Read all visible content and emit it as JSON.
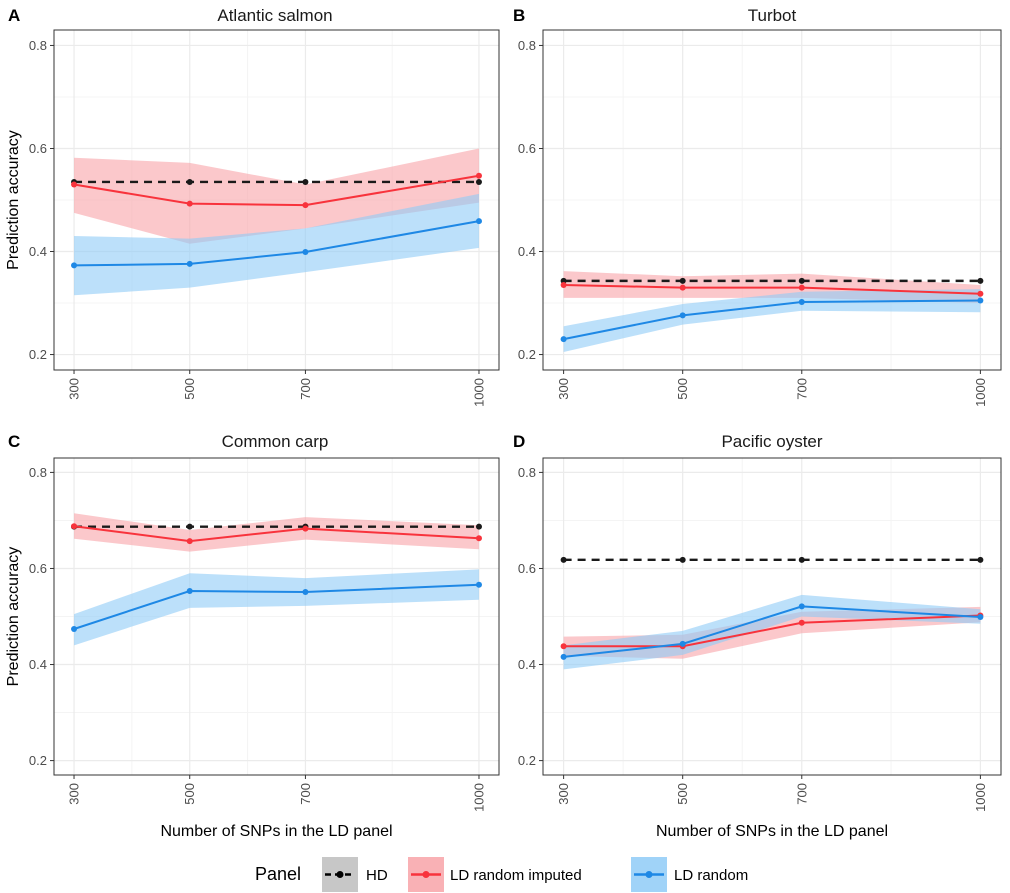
{
  "figure": {
    "legend": {
      "title": "Panel",
      "entries": [
        {
          "name": "HD",
          "color": "#000000",
          "dashed": true
        },
        {
          "name": "LD random imputed",
          "color": "#F8333C",
          "dashed": false
        },
        {
          "name": "LD random",
          "color": "#1E88E5",
          "dashed": false
        }
      ]
    },
    "colors": {
      "hd": "#1a1a1a",
      "imputed": "#F8333C",
      "imputed_band": "#F8A3A8",
      "random": "#1E88E5",
      "random_band": "#8FCBF7",
      "grid": "#EBEBEB",
      "border": "#333333"
    }
  },
  "chart_data": [
    {
      "type": "line",
      "letter": "A",
      "title": "Atlantic salmon",
      "xlabel": "",
      "ylabel": "Prediction accuracy",
      "x": [
        300,
        500,
        700,
        1000
      ],
      "x_tick_labels": [
        "300",
        "500",
        "700",
        "1000"
      ],
      "ylim": [
        0.17,
        0.83
      ],
      "y_ticks": [
        0.2,
        0.4,
        0.6,
        0.8
      ],
      "y_tick_labels": [
        "0.2",
        "0.4",
        "0.6",
        "0.8"
      ],
      "series": [
        {
          "name": "HD",
          "values": [
            0.535,
            0.535,
            0.535,
            0.535
          ]
        },
        {
          "name": "LD random imputed",
          "values": [
            0.53,
            0.493,
            0.49,
            0.547
          ],
          "lower": [
            0.475,
            0.415,
            0.445,
            0.495
          ],
          "upper": [
            0.582,
            0.572,
            0.53,
            0.6
          ]
        },
        {
          "name": "LD random",
          "values": [
            0.373,
            0.376,
            0.399,
            0.459
          ],
          "lower": [
            0.315,
            0.33,
            0.36,
            0.407
          ],
          "upper": [
            0.43,
            0.425,
            0.445,
            0.512
          ]
        }
      ]
    },
    {
      "type": "line",
      "letter": "B",
      "title": "Turbot",
      "xlabel": "",
      "ylabel": "",
      "x": [
        300,
        500,
        700,
        1000
      ],
      "x_tick_labels": [
        "300",
        "500",
        "700",
        "1000"
      ],
      "ylim": [
        0.17,
        0.83
      ],
      "y_ticks": [
        0.2,
        0.4,
        0.6,
        0.8
      ],
      "y_tick_labels": [
        "0.2",
        "0.4",
        "0.6",
        "0.8"
      ],
      "series": [
        {
          "name": "HD",
          "values": [
            0.343,
            0.343,
            0.343,
            0.343
          ]
        },
        {
          "name": "LD random imputed",
          "values": [
            0.335,
            0.33,
            0.33,
            0.318
          ],
          "lower": [
            0.31,
            0.31,
            0.31,
            0.3
          ],
          "upper": [
            0.362,
            0.352,
            0.357,
            0.335
          ]
        },
        {
          "name": "LD random",
          "values": [
            0.23,
            0.276,
            0.302,
            0.305
          ],
          "lower": [
            0.205,
            0.258,
            0.285,
            0.282
          ],
          "upper": [
            0.255,
            0.298,
            0.322,
            0.327
          ]
        }
      ]
    },
    {
      "type": "line",
      "letter": "C",
      "title": "Common carp",
      "xlabel": "Number of SNPs in the LD panel",
      "ylabel": "Prediction accuracy",
      "x": [
        300,
        500,
        700,
        1000
      ],
      "x_tick_labels": [
        "300",
        "500",
        "700",
        "1000"
      ],
      "ylim": [
        0.17,
        0.83
      ],
      "y_ticks": [
        0.2,
        0.4,
        0.6,
        0.8
      ],
      "y_tick_labels": [
        "0.2",
        "0.4",
        "0.6",
        "0.8"
      ],
      "series": [
        {
          "name": "HD",
          "values": [
            0.687,
            0.687,
            0.687,
            0.687
          ]
        },
        {
          "name": "LD random imputed",
          "values": [
            0.688,
            0.657,
            0.683,
            0.663
          ],
          "lower": [
            0.662,
            0.635,
            0.66,
            0.64
          ],
          "upper": [
            0.715,
            0.68,
            0.707,
            0.69
          ]
        },
        {
          "name": "LD random",
          "values": [
            0.474,
            0.553,
            0.551,
            0.566
          ],
          "lower": [
            0.44,
            0.518,
            0.522,
            0.535
          ],
          "upper": [
            0.505,
            0.59,
            0.58,
            0.598
          ]
        }
      ]
    },
    {
      "type": "line",
      "letter": "D",
      "title": "Pacific oyster",
      "xlabel": "Number of SNPs in the LD panel",
      "ylabel": "",
      "x": [
        300,
        500,
        700,
        1000
      ],
      "x_tick_labels": [
        "300",
        "500",
        "700",
        "1000"
      ],
      "ylim": [
        0.17,
        0.83
      ],
      "y_ticks": [
        0.2,
        0.4,
        0.6,
        0.8
      ],
      "y_tick_labels": [
        "0.2",
        "0.4",
        "0.6",
        "0.8"
      ],
      "series": [
        {
          "name": "HD",
          "values": [
            0.618,
            0.618,
            0.618,
            0.618
          ]
        },
        {
          "name": "LD random imputed",
          "values": [
            0.438,
            0.438,
            0.487,
            0.502
          ],
          "lower": [
            0.418,
            0.412,
            0.465,
            0.488
          ],
          "upper": [
            0.458,
            0.462,
            0.51,
            0.52
          ]
        },
        {
          "name": "LD random",
          "values": [
            0.416,
            0.443,
            0.521,
            0.499
          ],
          "lower": [
            0.39,
            0.42,
            0.5,
            0.485
          ],
          "upper": [
            0.44,
            0.47,
            0.545,
            0.515
          ]
        }
      ]
    }
  ]
}
